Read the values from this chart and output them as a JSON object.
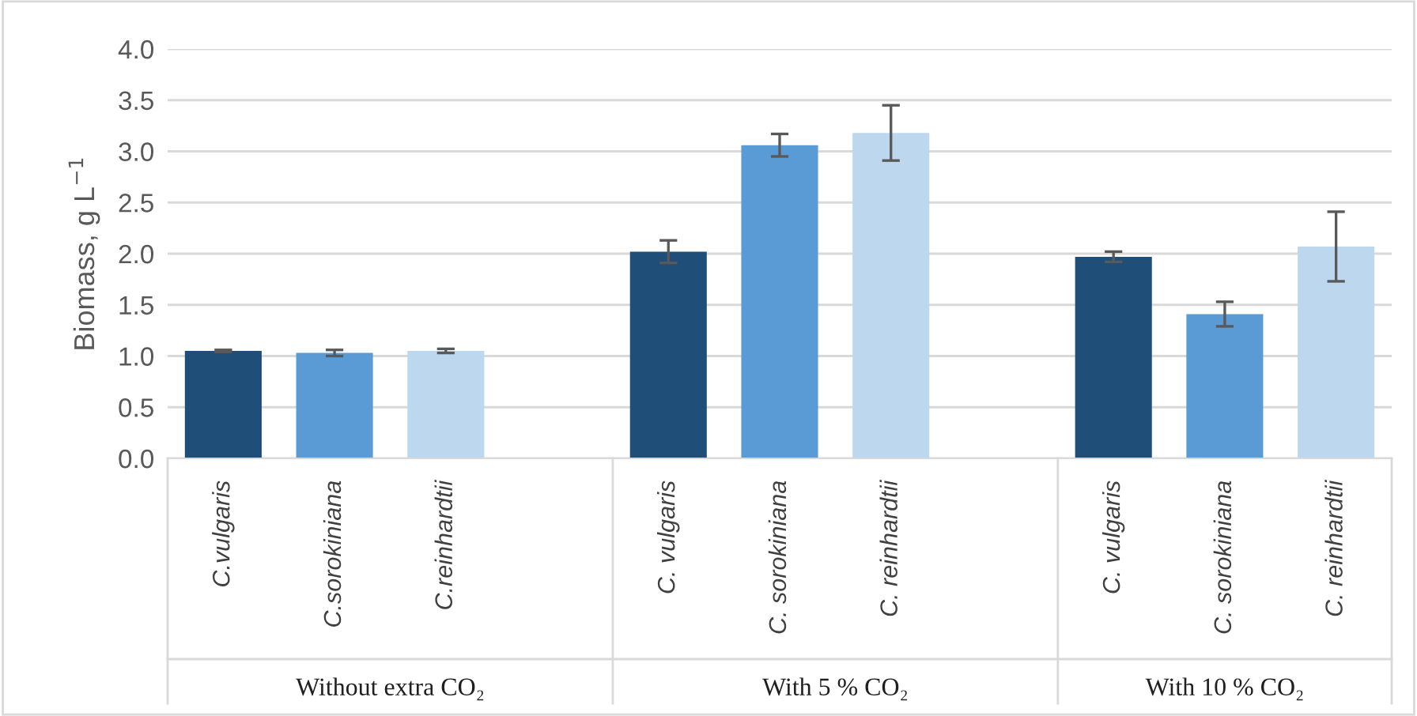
{
  "chart_data": {
    "type": "bar",
    "ylabel": "Biomass, g L$^{−1}$",
    "categories": [
      "C.vulgaris",
      "C.sorokiniana",
      "C.reinhardtii",
      null,
      "C. vulgaris",
      "C. sorokiniana",
      "C. reinhardtii",
      null,
      "C. vulgaris",
      "C. sorokiniana",
      "C. reinhardtii"
    ],
    "values": [
      1.05,
      1.03,
      1.05,
      null,
      2.02,
      3.06,
      3.18,
      null,
      1.97,
      1.41,
      2.07
    ],
    "errors": [
      0.01,
      0.03,
      0.02,
      null,
      0.11,
      0.11,
      0.27,
      null,
      0.05,
      0.12,
      0.34
    ],
    "colors": [
      "#1f4e79",
      "#5b9bd5",
      "#bdd7ee",
      null,
      "#1f4e79",
      "#5b9bd5",
      "#bdd7ee",
      null,
      "#1f4e79",
      "#5b9bd5",
      "#bdd7ee"
    ],
    "annotations": [
      "Without extra CO₂",
      "With 5 % CO₂",
      "With 10 % CO₂"
    ],
    "ylim": [
      0,
      4.0
    ],
    "yticks": [
      {
        "value": 0,
        "label": "0.0"
      },
      {
        "value": 0.5,
        "label": "0.5"
      },
      {
        "value": 1.0,
        "label": "1.0"
      },
      {
        "value": 1.5,
        "label": "1.5"
      },
      {
        "value": 2.0,
        "label": "2.0"
      },
      {
        "value": 2.5,
        "label": "2.5"
      },
      {
        "value": 3.0,
        "label": "3.0"
      },
      {
        "value": 3.5,
        "label": "3.5"
      },
      {
        "value": 4.0,
        "label": "4.0"
      }
    ],
    "grid": "y"
  }
}
